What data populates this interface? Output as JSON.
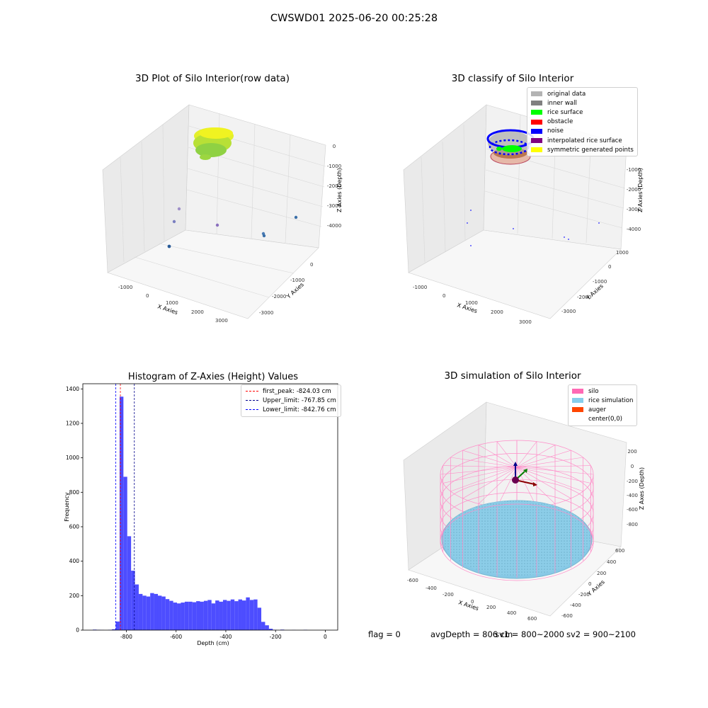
{
  "figure": {
    "title": "CWSWD01 2025-06-20 00:25:28"
  },
  "panels": {
    "raw": {
      "title": "3D Plot of Silo Interior(row data)",
      "xlabel": "X Axies",
      "ylabel": "Y Axies",
      "zlabel": "Z Axies (Depth)",
      "xticks": [
        "-1000",
        "0",
        "1000",
        "2000",
        "3000"
      ],
      "yticks": [
        "0",
        "-1000",
        "-2000",
        "-3000"
      ],
      "zticks": [
        "0",
        "-1000",
        "-2000",
        "-3000",
        "-4000"
      ]
    },
    "classify": {
      "title": "3D classify of Silo Interior",
      "xlabel": "X Axies",
      "ylabel": "Y Axies",
      "zlabel": "Z Axies (Depth)",
      "xticks": [
        "-1000",
        "0",
        "1000",
        "2000",
        "3000"
      ],
      "yticks": [
        "1000",
        "0",
        "-1000",
        "-2000",
        "-3000"
      ],
      "zticks": [
        "-1000",
        "-2000",
        "-3000",
        "-4000"
      ],
      "legend": [
        {
          "label": "original data",
          "color": "#b3b3b3"
        },
        {
          "label": "inner wall",
          "color": "#808080"
        },
        {
          "label": "rice surface",
          "color": "#00ff00"
        },
        {
          "label": "obstacle",
          "color": "#ff0000"
        },
        {
          "label": "noise",
          "color": "#0000ff"
        },
        {
          "label": "interpolated rice surface",
          "color": "#800080"
        },
        {
          "label": "symmetric generated points",
          "color": "#ffff00"
        }
      ]
    },
    "simulation": {
      "title": "3D simulation of Silo Interior",
      "xlabel": "X Axies",
      "ylabel": "Y Axies",
      "zlabel": "Z Axes (Depth)",
      "xticks": [
        "-600",
        "-400",
        "-200",
        "0",
        "200",
        "400",
        "600"
      ],
      "yticks": [
        "600",
        "400",
        "200",
        "0",
        "-200",
        "-400",
        "-600"
      ],
      "zticks": [
        "200",
        "0",
        "-200",
        "-400",
        "-600",
        "-800"
      ],
      "legend": [
        {
          "label": "silo",
          "color": "#ff69b4"
        },
        {
          "label": "rice simulation",
          "color": "#87ceeb"
        },
        {
          "label": "auger",
          "color": "#ff4500"
        },
        {
          "label": "center(0,0)",
          "color": ""
        }
      ]
    }
  },
  "chart_data": {
    "type": "bar",
    "title": "Histogram of Z-Axies (Height) Values",
    "xlabel": "Depth (cm)",
    "ylabel": "Frequency",
    "xlim": [
      -975,
      50
    ],
    "ylim": [
      0,
      1430
    ],
    "xticks": [
      -800,
      -600,
      -400,
      -200,
      0
    ],
    "yticks": [
      0,
      200,
      400,
      600,
      800,
      1000,
      1200,
      1400
    ],
    "bar_color": "#4d4dff",
    "bins": {
      "start": -935,
      "width": 15.4,
      "counts": [
        3,
        2,
        1,
        0,
        2,
        5,
        50,
        1355,
        890,
        545,
        345,
        265,
        210,
        200,
        195,
        215,
        210,
        200,
        195,
        180,
        170,
        160,
        155,
        160,
        165,
        165,
        162,
        168,
        165,
        170,
        175,
        155,
        172,
        165,
        175,
        170,
        178,
        168,
        178,
        172,
        190,
        175,
        178,
        130,
        48,
        28,
        8,
        2,
        0,
        3,
        0,
        0,
        1,
        0,
        0,
        2
      ]
    },
    "vlines": [
      {
        "label": "first_peak: -824.03 cm",
        "x": -824.03,
        "color": "#ff0000"
      },
      {
        "label": "Upper_limit: -767.85 cm",
        "x": -767.85,
        "color": "#00008b"
      },
      {
        "label": "Lower_limit: -842.76 cm",
        "x": -842.76,
        "color": "#0000ff"
      }
    ]
  },
  "footer": {
    "flag": "flag = 0",
    "avg": "avgDepth = 806 cm",
    "sv1": "sv1 = 800~2000",
    "sv2": "sv2 = 900~2100"
  }
}
